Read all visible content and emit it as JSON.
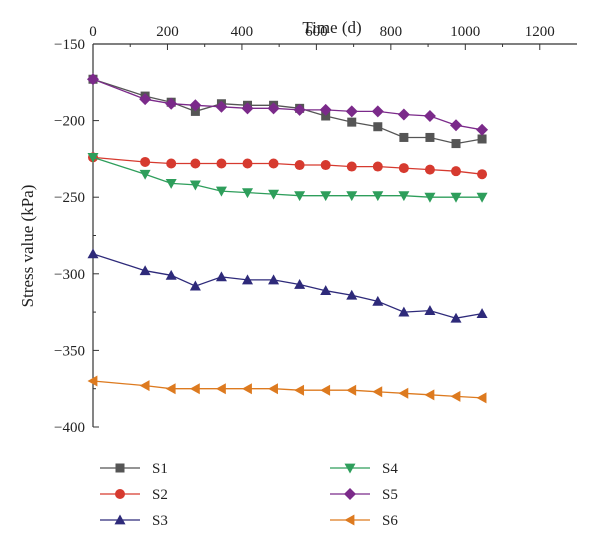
{
  "chart_data": {
    "type": "line",
    "xlabel": "Time (d)",
    "ylabel": "Stress value (kPa)",
    "xlim": [
      0,
      1300
    ],
    "ylim": [
      -400,
      -150
    ],
    "x_axis_position": "top",
    "xticks": [
      0,
      200,
      400,
      600,
      800,
      1000,
      1200
    ],
    "yticks": [
      -150,
      -200,
      -250,
      -300,
      -350,
      -400
    ],
    "ytick_labels": [
      "−150",
      "−200",
      "−250",
      "−300",
      "−350",
      "−400"
    ],
    "grid": false,
    "legend_position": "bottom",
    "x": [
      0,
      140,
      210,
      275,
      345,
      415,
      485,
      555,
      625,
      695,
      765,
      835,
      905,
      975,
      1045
    ],
    "series": [
      {
        "name": "S1",
        "color": "#555555",
        "marker": "square",
        "values": [
          -173,
          -184,
          -188,
          -194,
          -189,
          -190,
          -190,
          -192,
          -197,
          -201,
          -204,
          -211,
          -211,
          -215,
          -212
        ]
      },
      {
        "name": "S2",
        "color": "#d63a2f",
        "marker": "circle",
        "values": [
          -224,
          -227,
          -228,
          -228,
          -228,
          -228,
          -228,
          -229,
          -229,
          -230,
          -230,
          -231,
          -232,
          -233,
          -235
        ]
      },
      {
        "name": "S3",
        "color": "#2e2a7a",
        "marker": "triangle-up",
        "values": [
          -287,
          -298,
          -301,
          -308,
          -302,
          -304,
          -304,
          -307,
          -311,
          -314,
          -318,
          -325,
          -324,
          -329,
          -326
        ]
      },
      {
        "name": "S4",
        "color": "#2e9e5b",
        "marker": "triangle-down",
        "values": [
          -224,
          -235,
          -241,
          -242,
          -246,
          -247,
          -248,
          -249,
          -249,
          -249,
          -249,
          -249,
          -250,
          -250,
          -250
        ]
      },
      {
        "name": "S5",
        "color": "#7b2a8a",
        "marker": "diamond",
        "values": [
          -173,
          -186,
          -189,
          -190,
          -191,
          -192,
          -192,
          -193,
          -193,
          -194,
          -194,
          -196,
          -197,
          -203,
          -206
        ]
      },
      {
        "name": "S6",
        "color": "#dd7a1f",
        "marker": "triangle-left",
        "values": [
          -370,
          -373,
          -375,
          -375,
          -375,
          -375,
          -375,
          -376,
          -376,
          -376,
          -377,
          -378,
          -379,
          -380,
          -381
        ]
      }
    ]
  }
}
